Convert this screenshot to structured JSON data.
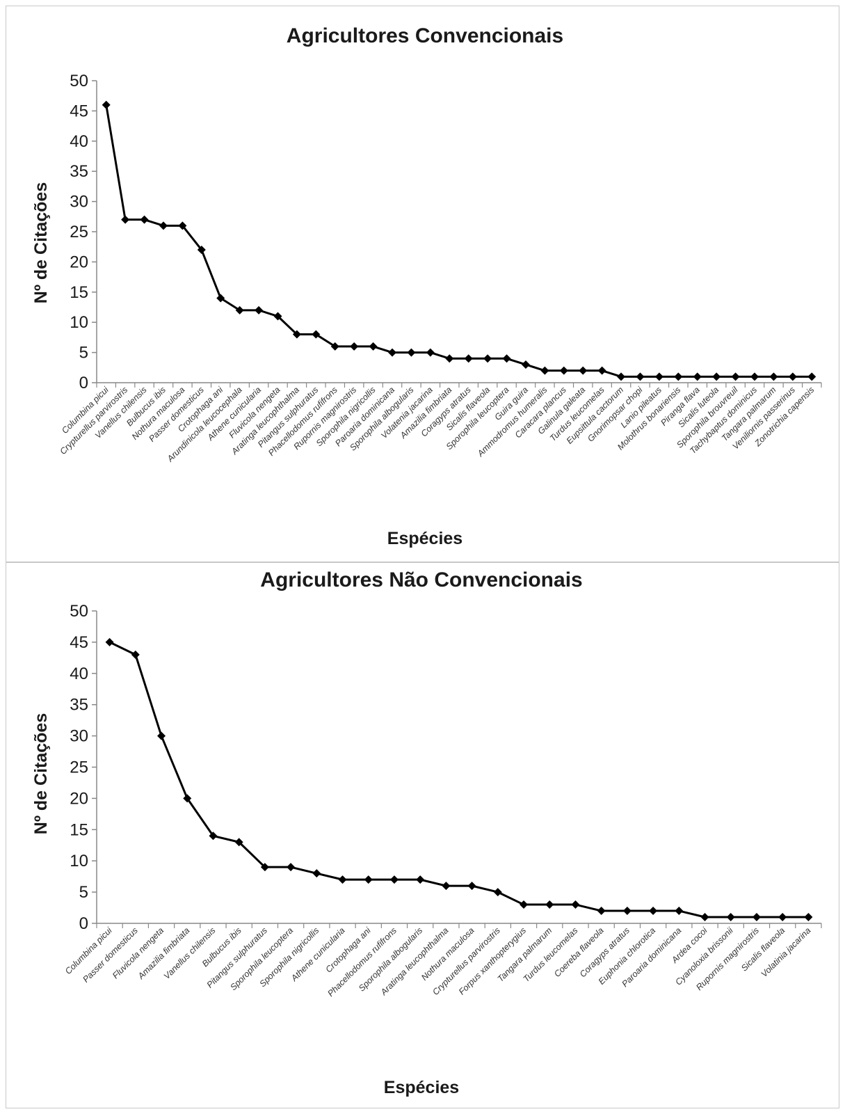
{
  "chart_data": [
    {
      "type": "line",
      "title": "Agricultores Convencionais",
      "xlabel": "Espécies",
      "ylabel": "Nº de Citações",
      "ylim": [
        0,
        50
      ],
      "yticks": [
        0,
        5,
        10,
        15,
        20,
        25,
        30,
        35,
        40,
        45,
        50
      ],
      "grid": false,
      "legend": "none",
      "categories": [
        "Columbina picui",
        "Crypturellus parvirostris",
        "Vanellus chilensis",
        "Bulbucus ibis",
        "Nothura maculosa",
        "Passer domesticus",
        "Crotophaga ani",
        "Arundinicola leucocephala",
        "Athene cunicularia",
        "Fluvicola nengeta",
        "Aratinga leucophthalma",
        "Pitangus sulphuratus",
        "Phacellodomus rufifrons",
        "Rupornis magnirostris",
        "Sporophila nigricollis",
        "Paroaria dominicana",
        "Sporophila albogularis",
        "Volatenia jacarina",
        "Amazilia fimbriata",
        "Coragyps atratus",
        "Sicalis flaveola",
        "Sporophila leucoptera",
        "Guira guira",
        "Ammodromus humeralis",
        "Caracara plancus",
        "Galinula galeata",
        "Turdus leucomelas",
        "Eupsittula cactorum",
        "Gnorimopsar chopi",
        "Lanio pileatus",
        "Molothrus bonariensis",
        "Piranga flava",
        "Sicalis luteola",
        "Sporophila brouvreuil",
        "Tachybaptus dominicus",
        "Tangara palmarum",
        "Veniliornis passerinus",
        "Zonotrichia capensis"
      ],
      "values": [
        46,
        27,
        27,
        26,
        26,
        22,
        14,
        12,
        12,
        11,
        8,
        8,
        6,
        6,
        6,
        5,
        5,
        5,
        4,
        4,
        4,
        4,
        3,
        2,
        2,
        2,
        2,
        1,
        1,
        1,
        1,
        1,
        1,
        1,
        1,
        1,
        1,
        1
      ],
      "color": "#000000"
    },
    {
      "type": "line",
      "title": "Agricultores Não Convencionais",
      "xlabel": "Espécies",
      "ylabel": "Nº de Citações",
      "ylim": [
        0,
        50
      ],
      "yticks": [
        0,
        5,
        10,
        15,
        20,
        25,
        30,
        35,
        40,
        45,
        50
      ],
      "grid": false,
      "legend": "none",
      "categories": [
        "Columbina picui",
        "Passer domesticus",
        "Fluvicola nengeta",
        "Amazilia fimbriata",
        "Vanellus chilensis",
        "Bulbucus ibis",
        "Pitangus sulphuratus",
        "Sporophila leucoptera",
        "Sporophila nigricollis",
        "Athene cunicularia",
        "Crotophaga ani",
        "Phacellodomus rufifrons",
        "Sporophila albogularis",
        "Aratinga leucophthalma",
        "Nothura maculosa",
        "Crypturellus parvirostris",
        "Forpus xanthopterygius",
        "Tangara palmarum",
        "Turdus leucomelas",
        "Coereba flaveola",
        "Coragyps atratus",
        "Euphonia chlorotica",
        "Paroaria dominicana",
        "Ardea cocoi",
        "Cyanoloxia brissonii",
        "Rupornis magnirostris",
        "Sicalis flaveola",
        "Volatinia jacarina"
      ],
      "values": [
        45,
        43,
        30,
        20,
        14,
        13,
        9,
        9,
        8,
        7,
        7,
        7,
        7,
        6,
        6,
        5,
        3,
        3,
        3,
        2,
        2,
        2,
        2,
        1,
        1,
        1,
        1,
        1
      ],
      "color": "#000000"
    }
  ]
}
